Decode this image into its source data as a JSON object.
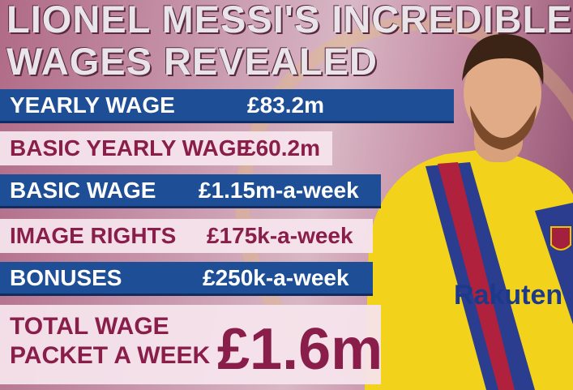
{
  "header": {
    "title": [
      "LIONEL MESSI'S INCREDIBLE",
      "WAGES REVEALED"
    ]
  },
  "rows": [
    {
      "label": "YEARLY WAGE",
      "value": "£83.2m"
    },
    {
      "label": "BASIC YEARLY WAGE",
      "value": "£60.2m"
    },
    {
      "label": "BASIC WAGE",
      "value": "£1.15m-a-week"
    },
    {
      "label": "IMAGE RIGHTS",
      "value": "£175k-a-week"
    },
    {
      "label": "BONUSES",
      "value": "£250k-a-week"
    }
  ],
  "total": {
    "label": [
      "TOTAL WAGE",
      "PACKET A WEEK"
    ],
    "value": "£1.6m"
  },
  "shirt_text": "Rakuten"
}
